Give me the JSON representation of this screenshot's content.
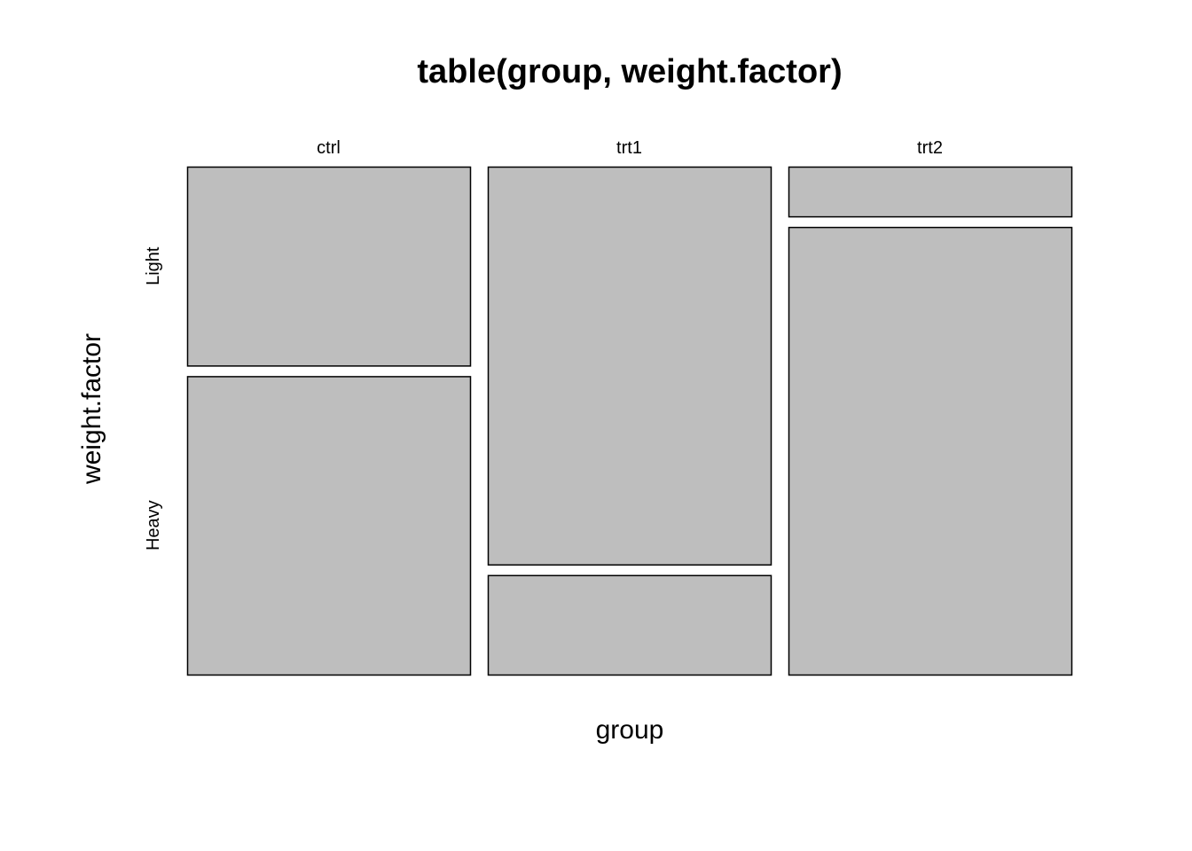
{
  "chart_data": {
    "type": "mosaic",
    "title": "table(group, weight.factor)",
    "xlabel": "group",
    "ylabel": "weight.factor",
    "x_categories": [
      "ctrl",
      "trt1",
      "trt2"
    ],
    "y_categories": [
      "Light",
      "Heavy"
    ],
    "counts": [
      {
        "group": "ctrl",
        "Light": 4,
        "Heavy": 6
      },
      {
        "group": "trt1",
        "Light": 8,
        "Heavy": 2
      },
      {
        "group": "trt2",
        "Light": 1,
        "Heavy": 9
      }
    ],
    "fill_color": "#BEBEBE",
    "stroke_color": "#000000"
  }
}
